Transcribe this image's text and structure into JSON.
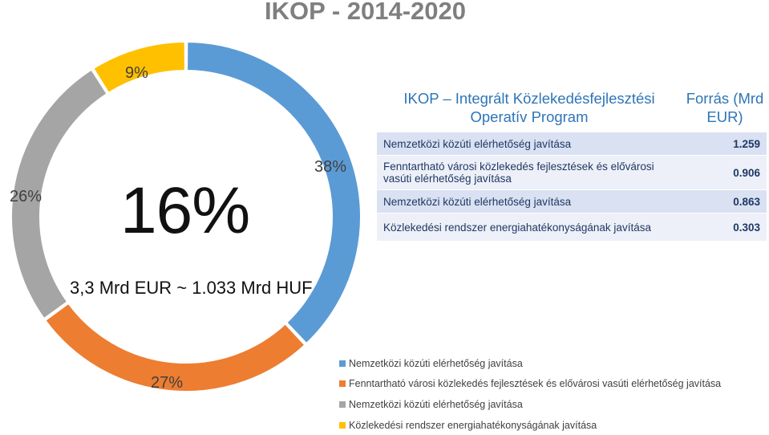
{
  "page_title": "IKOP - 2014-2020",
  "center": {
    "big_value": "16%",
    "subtitle": "3,3 Mrd EUR ~ 1.033 Mrd HUF"
  },
  "chart_data": {
    "type": "pie",
    "donut": true,
    "categories": [
      "Nemzetközi közúti elérhetőség javítása",
      "Fenntartható városi közlekedés fejlesztések és elővárosi vasúti elérhetőség javítása",
      "Nemzetközi közúti elérhetőség javítása",
      "Közlekedési rendszer energiahatékonyságának javítása"
    ],
    "values": [
      38,
      27,
      26,
      9
    ],
    "labels": [
      "38%",
      "27%",
      "26%",
      "9%"
    ],
    "colors": [
      "#5b9bd5",
      "#ed7d31",
      "#a5a5a5",
      "#ffc000"
    ],
    "legend_position": "bottom-right"
  },
  "table": {
    "header_program": "IKOP – Integrált Közlekedésfejlesztési Operatív Program",
    "header_source": "Forrás (Mrd EUR)",
    "rows": [
      {
        "label": "Nemzetközi közúti elérhetőség javítása",
        "value": "1.259"
      },
      {
        "label": "Fenntartható városi közlekedés fejlesztések és elővárosi vasúti elérhetőség javítása",
        "value": "0.906"
      },
      {
        "label": "Nemzetközi közúti elérhetőség javítása",
        "value": "0.863"
      },
      {
        "label": "Közlekedési rendszer energiahatékonyságának javítása",
        "value": "0.303"
      }
    ]
  }
}
